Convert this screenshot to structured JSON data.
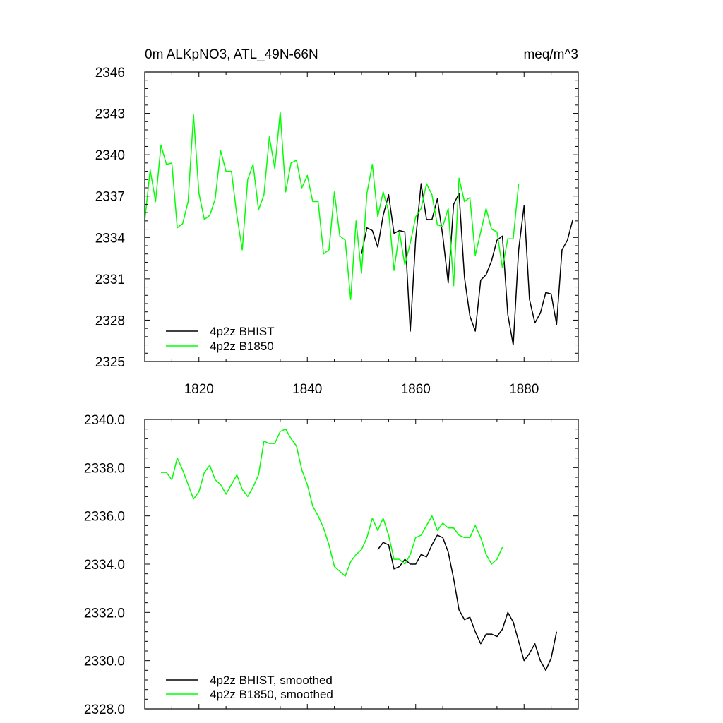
{
  "figure": {
    "title_left": "0m ALKpNO3, ATL_49N-66N",
    "title_right": "meq/m^3"
  },
  "chart_data": [
    {
      "type": "line",
      "title": "0m ALKpNO3, ATL_49N-66N",
      "units": "meq/m^3",
      "xlim": [
        1810,
        1890
      ],
      "ylim": [
        2325,
        2346
      ],
      "xticks": [
        1820,
        1840,
        1860,
        1880
      ],
      "xtick_labels": [
        "1820",
        "1840",
        "1860",
        "1880"
      ],
      "yticks": [
        2325,
        2328,
        2331,
        2334,
        2337,
        2340,
        2343,
        2346
      ],
      "ytick_labels": [
        "2325",
        "2328",
        "2331",
        "2334",
        "2337",
        "2340",
        "2343",
        "2346"
      ],
      "legend_position": "bottom-left",
      "series": [
        {
          "name": "4p2z BHIST",
          "color": "#000000",
          "x": [
            1850,
            1851,
            1852,
            1853,
            1854,
            1855,
            1856,
            1857,
            1858,
            1859,
            1860,
            1861,
            1862,
            1863,
            1864,
            1865,
            1866,
            1867,
            1868,
            1869,
            1870,
            1871,
            1872,
            1873,
            1874,
            1875,
            1876,
            1877,
            1878,
            1879,
            1880,
            1881,
            1882,
            1883,
            1884,
            1885,
            1886,
            1887,
            1888,
            1889
          ],
          "y": [
            2332.8,
            2334.7,
            2334.5,
            2333.3,
            2335.6,
            2337.1,
            2334.3,
            2334.5,
            2334.4,
            2327.2,
            2333.9,
            2337.9,
            2335.3,
            2335.3,
            2336.8,
            2334.1,
            2330.7,
            2336.4,
            2337.2,
            2331.1,
            2328.3,
            2327.2,
            2330.9,
            2331.3,
            2332.3,
            2333.8,
            2334.1,
            2328.4,
            2326.2,
            2333.1,
            2336.3,
            2329.5,
            2327.8,
            2328.5,
            2330.0,
            2329.9,
            2327.7,
            2333.1,
            2333.8,
            2335.3
          ]
        },
        {
          "name": "4p2z B1850",
          "color": "#00ff00",
          "x": [
            1810,
            1811,
            1812,
            1813,
            1814,
            1815,
            1816,
            1817,
            1818,
            1819,
            1820,
            1821,
            1822,
            1823,
            1824,
            1825,
            1826,
            1827,
            1828,
            1829,
            1830,
            1831,
            1832,
            1833,
            1834,
            1835,
            1836,
            1837,
            1838,
            1839,
            1840,
            1841,
            1842,
            1843,
            1844,
            1845,
            1846,
            1847,
            1848,
            1849,
            1850,
            1851,
            1852,
            1853,
            1854,
            1855,
            1856,
            1857,
            1858,
            1859,
            1860,
            1861,
            1862,
            1863,
            1864,
            1865,
            1866,
            1867,
            1868,
            1869,
            1870,
            1871,
            1872,
            1873,
            1874,
            1875,
            1876,
            1877,
            1878,
            1879
          ],
          "y": [
            2335.2,
            2338.9,
            2336.6,
            2340.7,
            2339.3,
            2339.4,
            2334.7,
            2335.0,
            2336.6,
            2342.9,
            2337.2,
            2335.3,
            2335.6,
            2336.8,
            2340.3,
            2338.8,
            2338.8,
            2335.6,
            2333.1,
            2338.2,
            2339.3,
            2336.0,
            2337.1,
            2341.3,
            2339.0,
            2343.1,
            2337.3,
            2339.4,
            2339.6,
            2337.6,
            2338.5,
            2336.6,
            2336.6,
            2332.8,
            2333.1,
            2337.3,
            2334.1,
            2333.8,
            2329.5,
            2335.2,
            2331.4,
            2337.2,
            2339.3,
            2335.5,
            2337.3,
            2335.9,
            2331.6,
            2334.4,
            2332.0,
            2333.6,
            2335.5,
            2336.1,
            2337.9,
            2337.1,
            2334.9,
            2334.8,
            2336.1,
            2330.5,
            2338.3,
            2336.6,
            2336.9,
            2332.7,
            2334.4,
            2336.1,
            2334.6,
            2334.4,
            2331.8,
            2333.9,
            2333.9,
            2337.9
          ]
        }
      ]
    },
    {
      "type": "line",
      "title": "",
      "xlim": [
        1810,
        1890
      ],
      "ylim": [
        2328.0,
        2340.0
      ],
      "xticks": [
        1820,
        1840,
        1860,
        1880
      ],
      "yticks": [
        2328.0,
        2330.0,
        2332.0,
        2334.0,
        2336.0,
        2338.0,
        2340.0
      ],
      "ytick_labels": [
        "2328.0",
        "2330.0",
        "2332.0",
        "2334.0",
        "2336.0",
        "2338.0",
        "2340.0"
      ],
      "legend_position": "bottom-left",
      "series": [
        {
          "name": "4p2z BHIST, smoothed",
          "color": "#000000",
          "x": [
            1853,
            1854,
            1855,
            1856,
            1857,
            1858,
            1859,
            1860,
            1861,
            1862,
            1863,
            1864,
            1865,
            1866,
            1867,
            1868,
            1869,
            1870,
            1871,
            1872,
            1873,
            1874,
            1875,
            1876,
            1877,
            1878,
            1879,
            1880,
            1881,
            1882,
            1883,
            1884,
            1885,
            1886
          ],
          "y": [
            2334.6,
            2334.9,
            2334.8,
            2333.8,
            2333.9,
            2334.2,
            2334.0,
            2334.0,
            2334.4,
            2334.3,
            2334.8,
            2335.2,
            2335.1,
            2334.5,
            2333.4,
            2332.1,
            2331.7,
            2331.8,
            2331.2,
            2330.7,
            2331.1,
            2331.1,
            2331.0,
            2331.3,
            2332.0,
            2331.6,
            2330.8,
            2330.0,
            2330.3,
            2330.7,
            2330.0,
            2329.6,
            2330.1,
            2331.2
          ]
        },
        {
          "name": "4p2z B1850, smoothed",
          "color": "#00ff00",
          "x": [
            1813,
            1814,
            1815,
            1816,
            1817,
            1818,
            1819,
            1820,
            1821,
            1822,
            1823,
            1824,
            1825,
            1826,
            1827,
            1828,
            1829,
            1830,
            1831,
            1832,
            1833,
            1834,
            1835,
            1836,
            1837,
            1838,
            1839,
            1840,
            1841,
            1842,
            1843,
            1844,
            1845,
            1846,
            1847,
            1848,
            1849,
            1850,
            1851,
            1852,
            1853,
            1854,
            1855,
            1856,
            1857,
            1858,
            1859,
            1860,
            1861,
            1862,
            1863,
            1864,
            1865,
            1866,
            1867,
            1868,
            1869,
            1870,
            1871,
            1872,
            1873,
            1874,
            1875,
            1876
          ],
          "y": [
            2337.8,
            2337.8,
            2337.5,
            2338.4,
            2337.9,
            2337.3,
            2336.7,
            2337.0,
            2337.8,
            2338.1,
            2337.5,
            2337.3,
            2336.9,
            2337.3,
            2337.7,
            2337.1,
            2336.8,
            2337.2,
            2337.7,
            2339.1,
            2339.0,
            2339.0,
            2339.5,
            2339.6,
            2339.2,
            2338.9,
            2337.9,
            2337.3,
            2336.4,
            2336.0,
            2335.5,
            2334.8,
            2333.9,
            2333.7,
            2333.5,
            2334.1,
            2334.4,
            2334.6,
            2335.1,
            2335.9,
            2335.4,
            2335.9,
            2335.2,
            2334.2,
            2334.2,
            2334.0,
            2334.4,
            2335.1,
            2335.2,
            2335.6,
            2336.0,
            2335.4,
            2335.7,
            2335.5,
            2335.5,
            2335.2,
            2335.1,
            2335.1,
            2335.6,
            2335.1,
            2334.4,
            2334.0,
            2334.2,
            2334.7
          ]
        }
      ]
    }
  ]
}
